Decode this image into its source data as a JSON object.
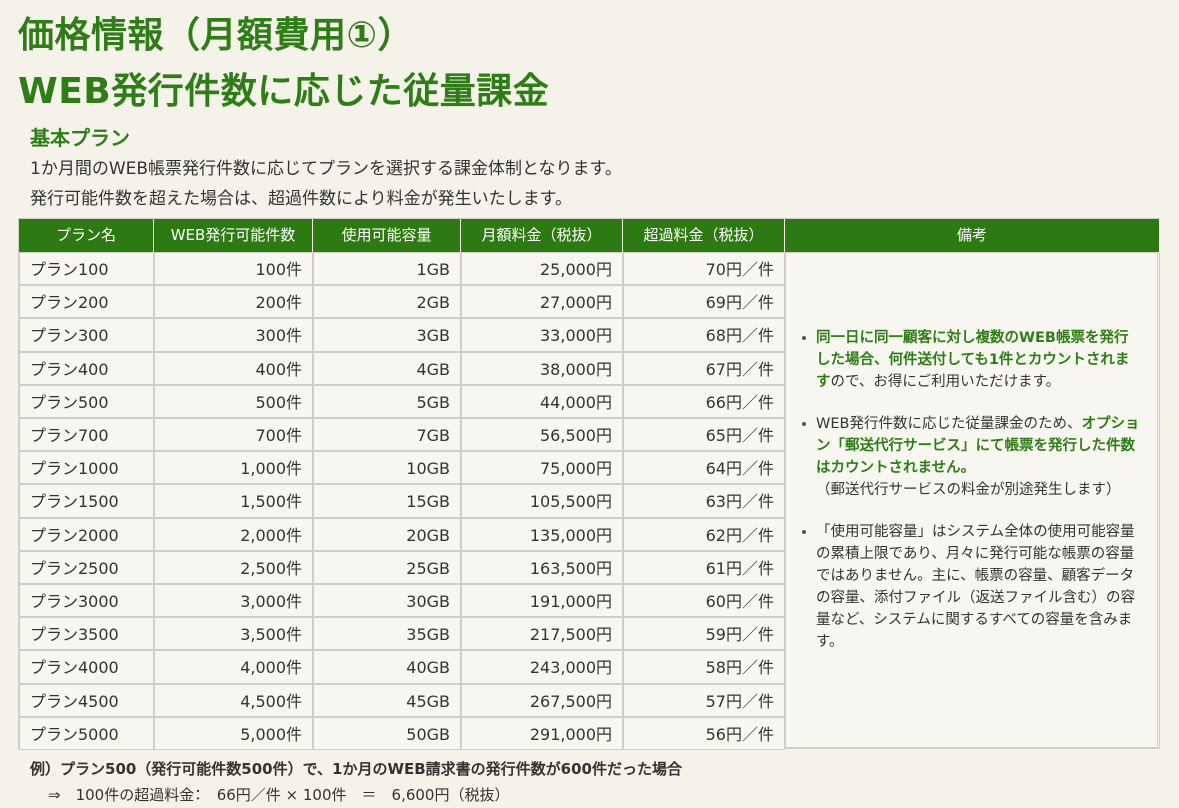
{
  "header": {
    "title_line1": "価格情報（月額費用①）",
    "title_line2": "WEB発行件数に応じた従量課金"
  },
  "section": {
    "title": "基本プラン",
    "lines": [
      "1か月間のWEB帳票発行件数に応じてプランを選択する課金体制となります。",
      "発行可能件数を超えた場合は、超過件数により料金が発生いたします。"
    ]
  },
  "table": {
    "columns": [
      "プラン名",
      "WEB発行可能件数",
      "使用可能容量",
      "月額料金（税抜）",
      "超過料金（税抜）",
      "備考"
    ],
    "rows": [
      [
        "プラン100",
        "100件",
        "1GB",
        "25,000円",
        "70円／件"
      ],
      [
        "プラン200",
        "200件",
        "2GB",
        "27,000円",
        "69円／件"
      ],
      [
        "プラン300",
        "300件",
        "3GB",
        "33,000円",
        "68円／件"
      ],
      [
        "プラン400",
        "400件",
        "4GB",
        "38,000円",
        "67円／件"
      ],
      [
        "プラン500",
        "500件",
        "5GB",
        "44,000円",
        "66円／件"
      ],
      [
        "プラン700",
        "700件",
        "7GB",
        "56,500円",
        "65円／件"
      ],
      [
        "プラン1000",
        "1,000件",
        "10GB",
        "75,000円",
        "64円／件"
      ],
      [
        "プラン1500",
        "1,500件",
        "15GB",
        "105,500円",
        "63円／件"
      ],
      [
        "プラン2000",
        "2,000件",
        "20GB",
        "135,000円",
        "62円／件"
      ],
      [
        "プラン2500",
        "2,500件",
        "25GB",
        "163,500円",
        "61円／件"
      ],
      [
        "プラン3000",
        "3,000件",
        "30GB",
        "191,000円",
        "60円／件"
      ],
      [
        "プラン3500",
        "3,500件",
        "35GB",
        "217,500円",
        "59円／件"
      ],
      [
        "プラン4000",
        "4,000件",
        "40GB",
        "243,000円",
        "58円／件"
      ],
      [
        "プラン4500",
        "4,500件",
        "45GB",
        "267,500円",
        "57円／件"
      ],
      [
        "プラン5000",
        "5,000件",
        "50GB",
        "291,000円",
        "56円／件"
      ]
    ],
    "notes": [
      {
        "parts": [
          {
            "text": "同一日に同一顧客に対し複数のWEB帳票を発行した場合、何件送付しても1件とカウントされます",
            "emphasis": true
          },
          {
            "text": "ので、お得にご利用いただけます。",
            "emphasis": false
          }
        ]
      },
      {
        "parts": [
          {
            "text": "WEB発行件数に応じた従量課金のため、",
            "emphasis": false
          },
          {
            "text": "オプション「郵送代行サービス」にて帳票を発行した件数はカウントされません。",
            "emphasis": true
          },
          {
            "text": "（郵送代行サービスの料金が別途発生します）",
            "emphasis": false
          }
        ]
      },
      {
        "parts": [
          {
            "text": "「使用可能容量」はシステム全体の使用可能容量の累積上限であり、月々に発行可能な帳票の容量ではありません。主に、帳票の容量、顧客データの容量、添付ファイル（返送ファイル含む）の容量など、システムに関するすべての容量を含みます。",
            "emphasis": false
          }
        ]
      }
    ]
  },
  "example": {
    "line1": "例）プラン500（発行可能件数500件）で、1か月のWEB請求書の発行件数が600件だった場合",
    "line2": "⇒　100件の超過料金：　66円／件 × 100件　＝　6,600円（税抜）"
  }
}
